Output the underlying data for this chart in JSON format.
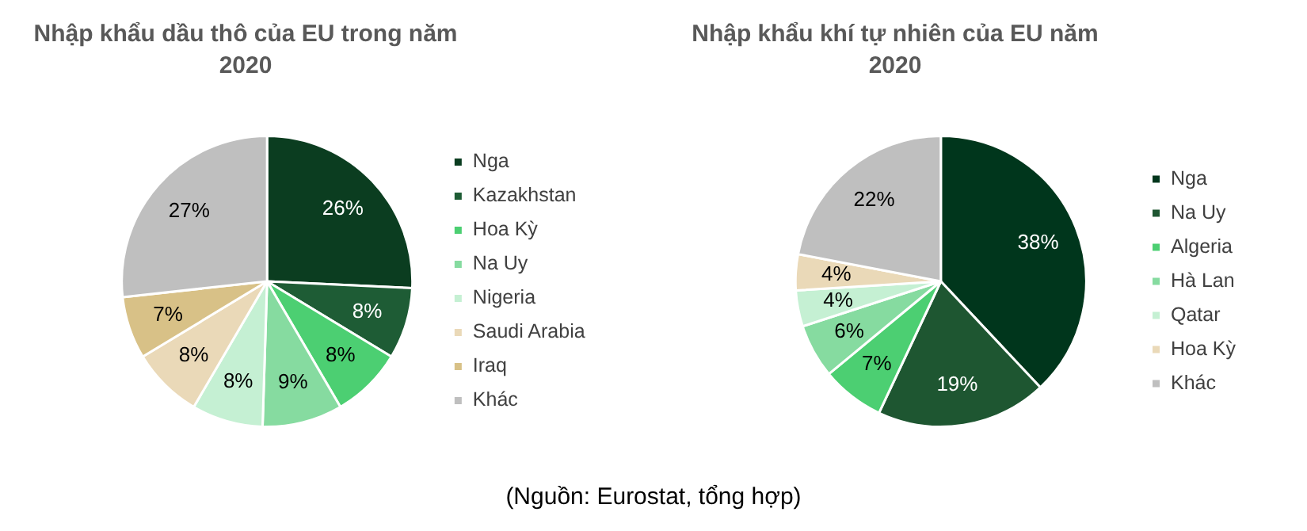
{
  "chart_data": [
    {
      "type": "pie",
      "title": "Nhập khẩu dầu thô của EU trong năm 2020",
      "categories": [
        "Nga",
        "Kazakhstan",
        "Hoa Kỳ",
        "Na Uy",
        "Nigeria",
        "Saudi Arabia",
        "Iraq",
        "Khác"
      ],
      "values": [
        26,
        8,
        8,
        9,
        8,
        8,
        7,
        27
      ],
      "value_labels": [
        "26%",
        "8%",
        "8%",
        "9%",
        "8%",
        "8%",
        "7%",
        "27%"
      ],
      "colors": [
        "#0b3d20",
        "#1e5c35",
        "#4ccf72",
        "#86dba0",
        "#c5f0d3",
        "#ead9b8",
        "#d8c187",
        "#bfbfbf"
      ],
      "legend": "right"
    },
    {
      "type": "pie",
      "title": "Nhập khẩu khí tự nhiên của EU năm 2020",
      "categories": [
        "Nga",
        "Na Uy",
        "Algeria",
        "Hà Lan",
        "Qatar",
        "Hoa Kỳ",
        "Khác"
      ],
      "values": [
        38,
        19,
        7,
        6,
        4,
        4,
        22
      ],
      "value_labels": [
        "38%",
        "19%",
        "7%",
        "6%",
        "4%",
        "4%",
        "22%"
      ],
      "colors": [
        "#00361c",
        "#1e5631",
        "#4ccf72",
        "#86dba0",
        "#c5f0d3",
        "#ead9b8",
        "#bfbfbf"
      ],
      "legend": "right",
      "annotations": [
        "(Nguồn: Eurostat, tổng hợp)"
      ]
    }
  ]
}
